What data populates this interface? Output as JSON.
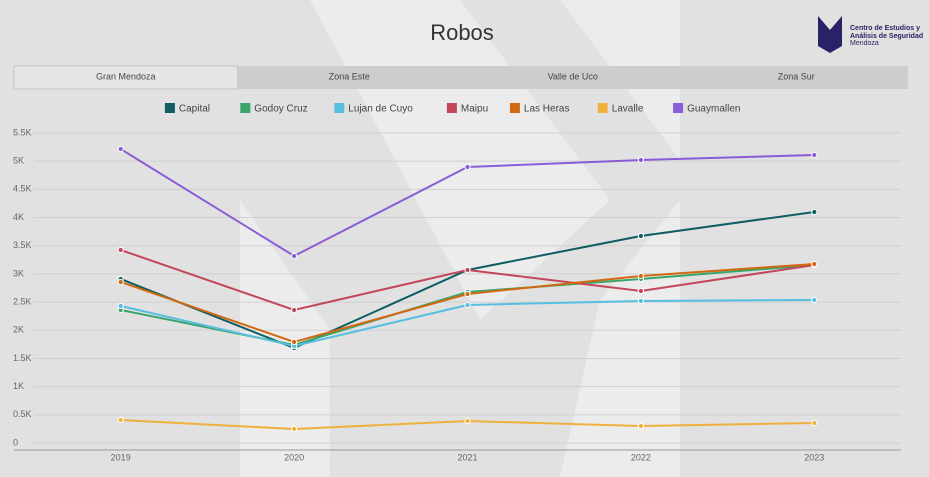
{
  "chart_data": {
    "type": "line",
    "title": "Robos",
    "tabs": [
      "Gran Mendoza",
      "Zona Este",
      "Valle de Uco",
      "Zona Sur"
    ],
    "logo": [
      "Centro de Estudios y",
      "Análisis de Seguridad",
      "Mendoza"
    ],
    "categories": [
      "2019",
      "2020",
      "2021",
      "2022",
      "2023"
    ],
    "series": [
      {
        "name": "Capital",
        "color": "#0f5e63",
        "values": [
          2910,
          1686,
          3070,
          3673,
          4099
        ]
      },
      {
        "name": "Godoy Cruz",
        "color": "#3aa56b",
        "values": [
          2360,
          1739,
          2679,
          2910,
          3158
        ]
      },
      {
        "name": "Lujan de Cuyo",
        "color": "#56bfe0",
        "values": [
          2431,
          1721,
          2449,
          2520,
          2537
        ]
      },
      {
        "name": "Maipu",
        "color": "#c2475a",
        "values": [
          3424,
          2360,
          3070,
          2697,
          3158
        ]
      },
      {
        "name": "Las Heras",
        "color": "#d2680f",
        "values": [
          2857,
          1792,
          2644,
          2963,
          3176
        ]
      },
      {
        "name": "Lavalle",
        "color": "#f0b13c",
        "values": [
          408,
          248,
          390,
          302,
          355
        ]
      },
      {
        "name": "Guaymallen",
        "color": "#8a5cd6",
        "values": [
          5216,
          3318,
          4897,
          5021,
          5110
        ]
      }
    ],
    "ylim": [
      0,
      5500
    ],
    "yticks": [
      0,
      {
        "value": 500,
        "label": "0.5K"
      },
      {
        "value": 1000,
        "label": "1K"
      },
      {
        "value": 1500,
        "label": "1.5K"
      },
      {
        "value": 2000,
        "label": "2K"
      },
      {
        "value": 2500,
        "label": "2.5K"
      },
      {
        "value": 3000,
        "label": "3K"
      },
      {
        "value": 3500,
        "label": "3.5K"
      },
      {
        "value": 4000,
        "label": "4K"
      },
      {
        "value": 4500,
        "label": "4.5K"
      },
      {
        "value": 5000,
        "label": "5K"
      },
      {
        "value": 5500,
        "label": "5.5K"
      }
    ],
    "grid": true
  }
}
